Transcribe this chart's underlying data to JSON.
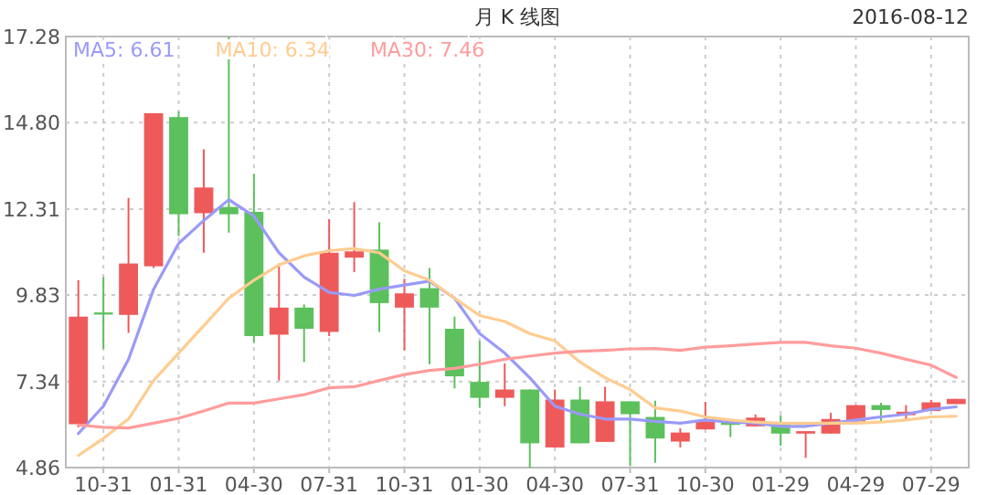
{
  "chart_data": {
    "type": "candlestick",
    "title": "月 K 线图",
    "annotations": [
      "2016-08-12"
    ],
    "categories": [
      null,
      "10-31",
      null,
      null,
      "01-31",
      null,
      null,
      "04-30",
      null,
      null,
      "07-31",
      null,
      null,
      "10-31",
      null,
      null,
      "01-30",
      null,
      null,
      "04-30",
      null,
      null,
      "07-31",
      null,
      null,
      "10-30",
      null,
      null,
      "01-29",
      null,
      null,
      "04-29",
      null,
      null,
      "07-29",
      null
    ],
    "ohlc": [
      [
        6.11,
        10.26,
        6.02,
        9.21
      ],
      [
        9.33,
        10.35,
        8.28,
        9.27
      ],
      [
        9.26,
        12.63,
        8.74,
        10.74
      ],
      [
        10.66,
        15.07,
        10.61,
        15.07
      ],
      [
        14.96,
        15.12,
        11.53,
        12.16
      ],
      [
        12.19,
        14.03,
        11.05,
        12.93
      ],
      [
        12.37,
        17.28,
        11.63,
        12.16
      ],
      [
        12.23,
        13.32,
        8.45,
        8.65
      ],
      [
        8.69,
        10.74,
        7.37,
        9.47
      ],
      [
        9.47,
        9.56,
        7.9,
        8.86
      ],
      [
        8.77,
        12.02,
        8.65,
        11.05
      ],
      [
        10.91,
        12.51,
        10.49,
        11.09
      ],
      [
        11.14,
        11.93,
        8.77,
        9.6
      ],
      [
        9.47,
        10.3,
        8.24,
        9.88
      ],
      [
        10.03,
        10.61,
        7.84,
        9.47
      ],
      [
        8.86,
        9.21,
        7.14,
        7.49
      ],
      [
        7.33,
        8.51,
        6.58,
        6.87
      ],
      [
        6.87,
        7.86,
        6.63,
        7.11
      ],
      [
        7.11,
        7.11,
        4.86,
        5.56
      ],
      [
        5.44,
        7.11,
        5.44,
        6.82
      ],
      [
        6.82,
        7.19,
        5.56,
        5.56
      ],
      [
        5.6,
        7.19,
        5.6,
        6.77
      ],
      [
        6.77,
        6.77,
        4.91,
        6.4
      ],
      [
        6.32,
        6.79,
        5.0,
        5.7
      ],
      [
        5.61,
        5.99,
        5.44,
        5.87
      ],
      [
        5.96,
        6.75,
        5.96,
        6.19
      ],
      [
        6.23,
        6.23,
        5.74,
        6.09
      ],
      [
        6.05,
        6.39,
        6.05,
        6.3
      ],
      [
        6.14,
        6.37,
        5.49,
        5.84
      ],
      [
        5.84,
        5.91,
        5.14,
        5.91
      ],
      [
        5.84,
        6.44,
        5.84,
        6.26
      ],
      [
        6.19,
        6.66,
        6.19,
        6.66
      ],
      [
        6.66,
        6.73,
        6.17,
        6.52
      ],
      [
        6.37,
        6.66,
        6.23,
        6.47
      ],
      [
        6.49,
        6.81,
        6.49,
        6.74
      ],
      [
        6.69,
        6.84,
        6.69,
        6.84
      ]
    ],
    "colors": [
      "#ee5a5a",
      "#5cc05c",
      "#ee5a5a",
      "#ee5a5a",
      "#5cc05c",
      "#ee5a5a",
      "#5cc05c",
      "#5cc05c",
      "#ee5a5a",
      "#5cc05c",
      "#ee5a5a",
      "#ee5a5a",
      "#5cc05c",
      "#ee5a5a",
      "#5cc05c",
      "#5cc05c",
      "#5cc05c",
      "#ee5a5a",
      "#5cc05c",
      "#ee5a5a",
      "#5cc05c",
      "#ee5a5a",
      "#5cc05c",
      "#5cc05c",
      "#ee5a5a",
      "#ee5a5a",
      "#5cc05c",
      "#ee5a5a",
      "#5cc05c",
      "#ee5a5a",
      "#ee5a5a",
      "#ee5a5a",
      "#5cc05c",
      "#ee5a5a",
      "#ee5a5a",
      "#ee5a5a"
    ],
    "series": [
      {
        "name": "MA5: 6.61",
        "type": "line",
        "color": "#9a9af8",
        "values": [
          5.84,
          6.63,
          7.98,
          10.0,
          11.32,
          11.98,
          12.58,
          12.11,
          11.05,
          10.35,
          9.91,
          9.82,
          10.0,
          10.12,
          10.23,
          9.74,
          8.72,
          8.16,
          7.45,
          6.63,
          6.4,
          6.26,
          6.26,
          6.19,
          6.14,
          6.23,
          6.17,
          6.14,
          6.05,
          6.05,
          6.14,
          6.23,
          6.32,
          6.4,
          6.54,
          6.61
        ]
      },
      {
        "name": "MA10: 6.34",
        "type": "line",
        "color": "#ffcc90",
        "values": [
          5.21,
          5.7,
          6.26,
          7.37,
          8.16,
          8.95,
          9.74,
          10.26,
          10.7,
          10.96,
          11.11,
          11.17,
          11.05,
          10.53,
          10.26,
          9.74,
          9.24,
          9.07,
          8.72,
          8.51,
          7.9,
          7.45,
          7.11,
          6.58,
          6.49,
          6.32,
          6.23,
          6.17,
          6.14,
          6.14,
          6.14,
          6.14,
          6.17,
          6.23,
          6.32,
          6.34
        ]
      },
      {
        "name": "MA30: 7.46",
        "type": "line",
        "color": "#ff9c9c",
        "values": [
          6.09,
          6.02,
          6.0,
          6.14,
          6.28,
          6.49,
          6.72,
          6.72,
          6.84,
          6.96,
          7.16,
          7.19,
          7.37,
          7.54,
          7.66,
          7.72,
          7.84,
          7.98,
          8.07,
          8.16,
          8.21,
          8.24,
          8.28,
          8.29,
          8.24,
          8.33,
          8.37,
          8.42,
          8.47,
          8.47,
          8.37,
          8.3,
          8.16,
          7.98,
          7.81,
          7.46
        ]
      }
    ],
    "ylim": [
      4.86,
      17.28
    ],
    "yticks": [
      4.86,
      7.34,
      9.83,
      12.31,
      {
        "value": 14.8,
        "label": "14.80"
      },
      17.28
    ],
    "grid": true,
    "legend": "top left"
  }
}
